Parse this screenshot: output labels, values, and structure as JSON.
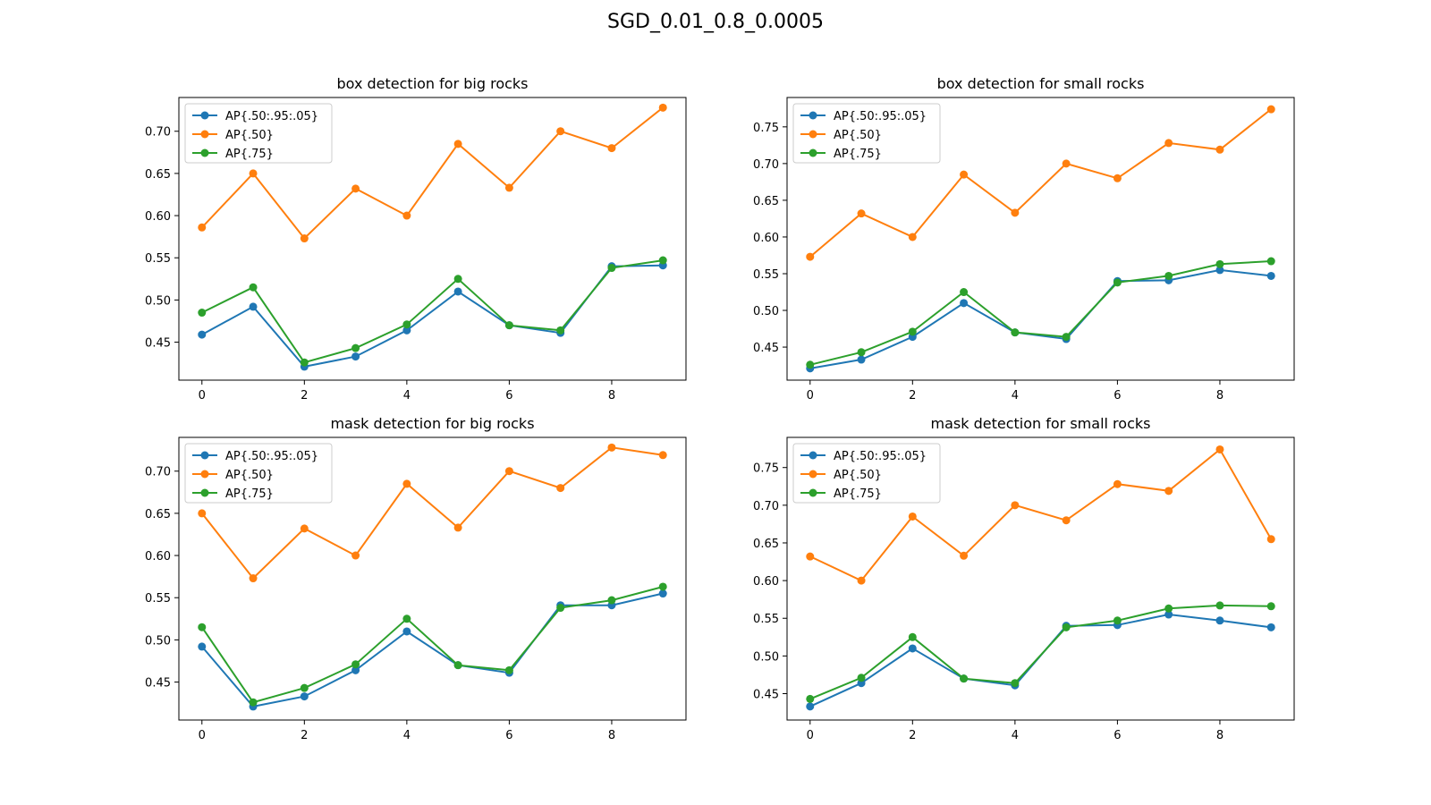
{
  "figure": {
    "title": "SGD_0.01_0.8_0.0005"
  },
  "colors": {
    "AP{.50:.95:.05}": "#1f77b4",
    "AP{.50}": "#ff7f0e",
    "AP{.75}": "#2ca02c"
  },
  "chart_data": [
    {
      "type": "line",
      "title": "box detection for big rocks",
      "xlabel": "",
      "ylabel": "",
      "x": [
        0,
        1,
        2,
        3,
        4,
        5,
        6,
        7,
        8,
        9
      ],
      "xticks": [
        0,
        2,
        4,
        6,
        8
      ],
      "yticks": [
        0.45,
        0.5,
        0.55,
        0.6,
        0.65,
        0.7
      ],
      "xlim": [
        -0.45,
        9.45
      ],
      "ylim": [
        0.405,
        0.74
      ],
      "grid": false,
      "legend": "upper-left",
      "series": [
        {
          "name": "AP{.50:.95:.05}",
          "values": [
            0.459,
            0.492,
            0.421,
            0.433,
            0.464,
            0.51,
            0.47,
            0.461,
            0.54,
            0.541
          ]
        },
        {
          "name": "AP{.50}",
          "values": [
            0.586,
            0.65,
            0.573,
            0.632,
            0.6,
            0.685,
            0.633,
            0.7,
            0.68,
            0.728
          ]
        },
        {
          "name": "AP{.75}",
          "values": [
            0.485,
            0.515,
            0.426,
            0.443,
            0.471,
            0.525,
            0.47,
            0.464,
            0.538,
            0.547
          ]
        }
      ]
    },
    {
      "type": "line",
      "title": "box detection for small rocks",
      "xlabel": "",
      "ylabel": "",
      "x": [
        0,
        1,
        2,
        3,
        4,
        5,
        6,
        7,
        8,
        9
      ],
      "xticks": [
        0,
        2,
        4,
        6,
        8
      ],
      "yticks": [
        0.45,
        0.5,
        0.55,
        0.6,
        0.65,
        0.7,
        0.75
      ],
      "xlim": [
        -0.45,
        9.45
      ],
      "ylim": [
        0.405,
        0.79
      ],
      "grid": false,
      "legend": "upper-left",
      "series": [
        {
          "name": "AP{.50:.95:.05}",
          "values": [
            0.421,
            0.433,
            0.464,
            0.51,
            0.47,
            0.461,
            0.54,
            0.541,
            0.555,
            0.547
          ]
        },
        {
          "name": "AP{.50}",
          "values": [
            0.573,
            0.632,
            0.6,
            0.685,
            0.633,
            0.7,
            0.68,
            0.728,
            0.719,
            0.774
          ]
        },
        {
          "name": "AP{.75}",
          "values": [
            0.426,
            0.443,
            0.471,
            0.525,
            0.47,
            0.464,
            0.538,
            0.547,
            0.563,
            0.567
          ]
        }
      ]
    },
    {
      "type": "line",
      "title": "mask detection for big rocks",
      "xlabel": "",
      "ylabel": "",
      "x": [
        0,
        1,
        2,
        3,
        4,
        5,
        6,
        7,
        8,
        9
      ],
      "xticks": [
        0,
        2,
        4,
        6,
        8
      ],
      "yticks": [
        0.45,
        0.5,
        0.55,
        0.6,
        0.65,
        0.7
      ],
      "xlim": [
        -0.45,
        9.45
      ],
      "ylim": [
        0.405,
        0.74
      ],
      "grid": false,
      "legend": "upper-left",
      "series": [
        {
          "name": "AP{.50:.95:.05}",
          "values": [
            0.492,
            0.421,
            0.433,
            0.464,
            0.51,
            0.47,
            0.461,
            0.541,
            0.541,
            0.555
          ]
        },
        {
          "name": "AP{.50}",
          "values": [
            0.65,
            0.573,
            0.632,
            0.6,
            0.685,
            0.633,
            0.7,
            0.68,
            0.728,
            0.719
          ]
        },
        {
          "name": "AP{.75}",
          "values": [
            0.515,
            0.426,
            0.443,
            0.471,
            0.525,
            0.47,
            0.464,
            0.538,
            0.547,
            0.563
          ]
        }
      ]
    },
    {
      "type": "line",
      "title": "mask detection for small rocks",
      "xlabel": "",
      "ylabel": "",
      "x": [
        0,
        1,
        2,
        3,
        4,
        5,
        6,
        7,
        8,
        9
      ],
      "xticks": [
        0,
        2,
        4,
        6,
        8
      ],
      "yticks": [
        0.45,
        0.5,
        0.55,
        0.6,
        0.65,
        0.7,
        0.75
      ],
      "xlim": [
        -0.45,
        9.45
      ],
      "ylim": [
        0.415,
        0.79
      ],
      "grid": false,
      "legend": "upper-left",
      "series": [
        {
          "name": "AP{.50:.95:.05}",
          "values": [
            0.433,
            0.464,
            0.51,
            0.47,
            0.461,
            0.54,
            0.541,
            0.555,
            0.547,
            0.538
          ]
        },
        {
          "name": "AP{.50}",
          "values": [
            0.632,
            0.6,
            0.685,
            0.633,
            0.7,
            0.68,
            0.728,
            0.719,
            0.774,
            0.655
          ]
        },
        {
          "name": "AP{.75}",
          "values": [
            0.443,
            0.471,
            0.525,
            0.47,
            0.464,
            0.538,
            0.547,
            0.563,
            0.567,
            0.566
          ]
        }
      ]
    }
  ]
}
